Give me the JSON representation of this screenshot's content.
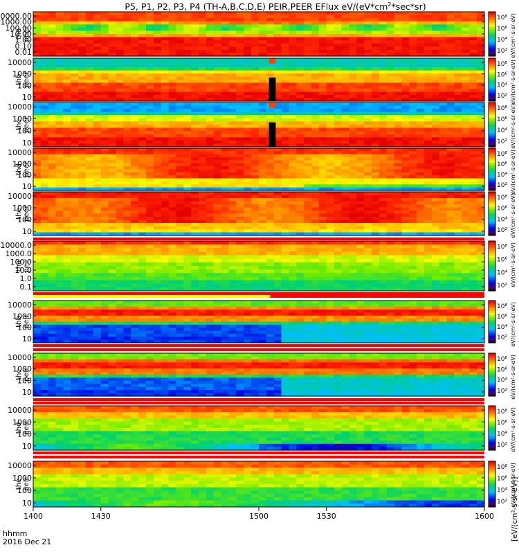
{
  "chart_data": {
    "type": "heatmap",
    "title": "P5, P1, P2, P3, P4 (TH-A,B,C,D,E) PEIR,PEER EFlux eV/(eV*cm",
    "title_units_tail": "*sec*sr)",
    "title_sup": "2",
    "x_label": "hhmm",
    "x_date": "2016 Dec 21",
    "x_range": [
      1400,
      1600
    ],
    "x_ticks": [
      "1400",
      "1430",
      "1500",
      "1530",
      "1600"
    ],
    "colorbar_ticks": [
      "10⁸",
      "10⁶",
      "10⁴",
      "10²"
    ],
    "colorbar_label_peer": "eV/(cm²-s-sr-eV)",
    "colorbar_label_peir": "[eV/(cm²-s-sr-eV)]",
    "panels": [
      {
        "sat": "tha",
        "species": "peer",
        "ticks": [
          "10000.00",
          "1000.00",
          "100.00",
          "10.00",
          "1.00",
          "0.10",
          "0.01"
        ],
        "profile": "pA",
        "gap": null
      },
      {
        "sat": "thb",
        "species": "peer",
        "ticks": [
          "10000",
          "1000",
          "100",
          "10"
        ],
        "profile": "pB",
        "gap": [
          1504.5,
          1507.5
        ]
      },
      {
        "sat": "thc",
        "species": "peer",
        "ticks": [
          "10000",
          "1000",
          "100",
          "10"
        ],
        "profile": "pC",
        "gap": [
          1504.5,
          1507.5
        ]
      },
      {
        "sat": "thd",
        "species": "peer",
        "ticks": [
          "10000",
          "1000",
          "100",
          "10"
        ],
        "profile": "pD",
        "gap": null
      },
      {
        "sat": "the",
        "species": "peer",
        "ticks": [
          "10000",
          "1000",
          "100",
          "10"
        ],
        "profile": "pE",
        "gap": null
      },
      {
        "sat": "tha",
        "species": "peir",
        "ticks": [
          "10000.0",
          "1000.0",
          "100.0",
          "10.0",
          "1.0",
          "0.1"
        ],
        "profile": "iA",
        "gap": null
      },
      {
        "sat": "thb",
        "species": "peir",
        "ticks": [
          "10000",
          "1000",
          "100",
          "10"
        ],
        "profile": "iB",
        "gap": null
      },
      {
        "sat": "thc",
        "species": "peir",
        "ticks": [
          "10000",
          "1000",
          "100",
          "10"
        ],
        "profile": "iC",
        "gap": null
      },
      {
        "sat": "thd",
        "species": "peir",
        "ticks": [
          "10000",
          "1000",
          "100",
          "10"
        ],
        "profile": "iD",
        "gap": null
      },
      {
        "sat": "the",
        "species": "peir",
        "ticks": [
          "10000",
          "1000",
          "100",
          "10"
        ],
        "profile": "iE",
        "gap": null
      }
    ]
  }
}
